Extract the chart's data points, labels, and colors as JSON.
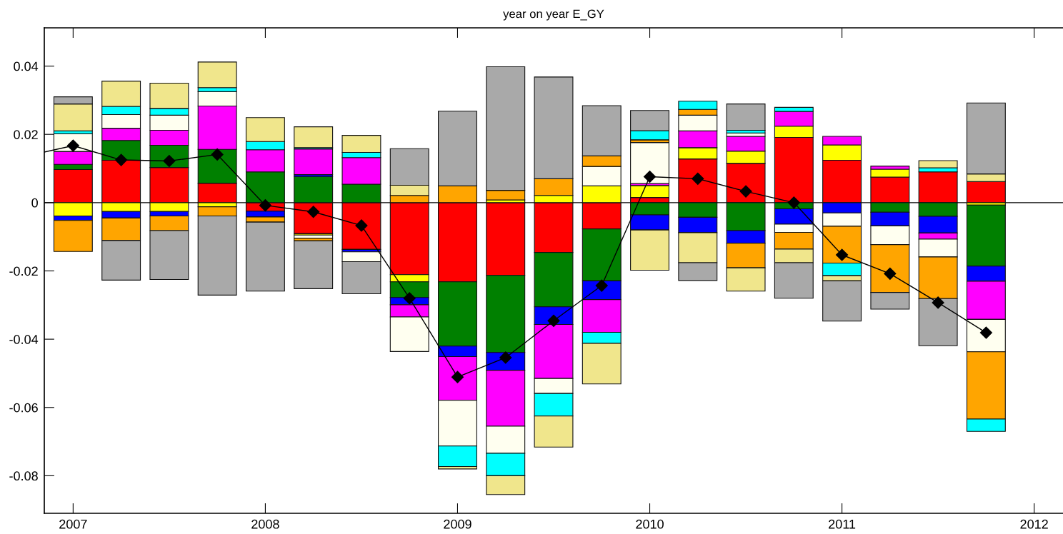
{
  "chart_data": {
    "type": "bar",
    "title": "year on year E_GY",
    "stacked": true,
    "x": [
      2007,
      2007.25,
      2007.5,
      2007.75,
      2008,
      2008.25,
      2008.5,
      2008.75,
      2009,
      2009.25,
      2009.5,
      2009.75,
      2010,
      2010.25,
      2010.5,
      2010.75,
      2011,
      2011.25,
      2011.5,
      2011.75
    ],
    "xlim": [
      2006.85,
      2012.15
    ],
    "xticks": [
      2007,
      2008,
      2009,
      2010,
      2011,
      2012
    ],
    "ylim": [
      -0.091,
      0.0512
    ],
    "yticks": [
      -0.08,
      -0.06,
      -0.04,
      -0.02,
      0,
      0.02,
      0.04
    ],
    "ref_lines": [
      {
        "axis": "y",
        "value": 0,
        "color": "#000000"
      }
    ],
    "series": [
      {
        "color": "#ff0000",
        "values": [
          0.0097,
          0.0124,
          0.0103,
          0.0057,
          -0.0025,
          -0.0091,
          -0.0137,
          -0.0211,
          -0.0232,
          -0.0213,
          -0.0146,
          -0.0077,
          0.0015,
          0.0128,
          0.0115,
          0.0191,
          0.0124,
          0.0075,
          0.009,
          0.0062
        ]
      },
      {
        "color": "#ffff00",
        "values": [
          -0.0039,
          -0.0026,
          -0.0026,
          -0.0012,
          null,
          -0.0004,
          null,
          -0.0021,
          null,
          0.0008,
          0.0021,
          0.0049,
          0.0035,
          0.0033,
          0.0036,
          0.0033,
          0.0045,
          0.0023,
          null,
          -0.0007
        ]
      },
      {
        "color": "#008000",
        "values": [
          0.0015,
          0.0058,
          0.0065,
          0.0099,
          0.009,
          0.0076,
          0.0054,
          -0.0046,
          -0.0188,
          -0.0226,
          -0.0159,
          -0.0152,
          -0.0036,
          -0.0043,
          -0.0082,
          -0.0018,
          null,
          -0.0028,
          -0.004,
          -0.0179
        ]
      },
      {
        "color": "#0000ff",
        "values": [
          -0.0013,
          -0.0019,
          -0.0013,
          null,
          -0.0017,
          0.0006,
          -0.0007,
          -0.0021,
          -0.0031,
          -0.0052,
          -0.0052,
          -0.0055,
          -0.0044,
          -0.0045,
          -0.0037,
          -0.0045,
          -0.003,
          -0.004,
          -0.0049,
          -0.0044
        ]
      },
      {
        "color": "#ff00ff",
        "values": [
          0.0038,
          0.0036,
          0.0044,
          0.0127,
          0.0065,
          0.0075,
          0.0078,
          -0.0036,
          -0.0128,
          -0.0164,
          -0.0158,
          -0.0096,
          0.0006,
          0.0049,
          0.0043,
          0.0043,
          0.0025,
          0.0009,
          -0.0018,
          -0.0112
        ]
      },
      {
        "color": "#fffff0",
        "values": [
          0.0052,
          0.004,
          0.0044,
          0.0042,
          null,
          -0.0009,
          -0.0029,
          -0.0101,
          -0.0134,
          -0.0079,
          -0.0044,
          0.0057,
          0.012,
          0.0046,
          0.001,
          -0.0024,
          -0.0039,
          -0.0055,
          -0.0052,
          -0.0095
        ]
      },
      {
        "color": "#ffa500",
        "values": [
          -0.0091,
          -0.0066,
          -0.0043,
          -0.0027,
          -0.0015,
          -0.0008,
          null,
          0.0021,
          0.0049,
          0.0028,
          0.0049,
          0.0031,
          0.0008,
          0.0017,
          -0.0072,
          -0.0049,
          -0.0108,
          -0.014,
          -0.0122,
          -0.0197
        ]
      },
      {
        "color": "#00ffff",
        "values": [
          0.0008,
          0.0024,
          0.002,
          0.0012,
          0.0024,
          0.0004,
          0.0015,
          null,
          -0.006,
          -0.0066,
          -0.0066,
          -0.0032,
          0.0027,
          0.0024,
          0.0008,
          0.0012,
          -0.0037,
          null,
          0.0012,
          -0.0036
        ]
      },
      {
        "color": "#f0e68c",
        "values": [
          0.0079,
          0.0074,
          0.0074,
          0.0075,
          0.007,
          0.0061,
          0.005,
          0.003,
          -0.0007,
          -0.0055,
          -0.0091,
          -0.0119,
          -0.0118,
          -0.0088,
          -0.0068,
          -0.004,
          -0.0015,
          null,
          0.0021,
          0.0022
        ]
      },
      {
        "color": "#a9a9a9",
        "values": [
          0.0021,
          -0.0116,
          -0.0143,
          -0.0232,
          -0.0202,
          -0.014,
          -0.0094,
          0.0107,
          0.0219,
          0.0362,
          0.0298,
          0.0147,
          0.0059,
          -0.0052,
          0.0077,
          -0.0104,
          -0.0118,
          -0.0049,
          -0.0138,
          0.0208
        ]
      },
      {
        "type": "line",
        "color": "#000000",
        "marker": "diamond",
        "x": [
          2006.85,
          2007,
          2007.25,
          2007.5,
          2007.75,
          2008,
          2008.25,
          2008.5,
          2008.75,
          2009,
          2009.25,
          2009.5,
          2009.75,
          2010,
          2010.25,
          2010.5,
          2010.75,
          2011,
          2011.25,
          2011.5,
          2011.75
        ],
        "values": [
          0.0148,
          0.0167,
          0.0125,
          0.0122,
          0.0141,
          -0.0008,
          -0.0027,
          -0.0067,
          -0.028,
          -0.0511,
          -0.0454,
          -0.0346,
          -0.0243,
          0.0076,
          0.007,
          0.0033,
          0.0,
          -0.0153,
          -0.0208,
          -0.0293,
          -0.0381
        ]
      }
    ]
  }
}
